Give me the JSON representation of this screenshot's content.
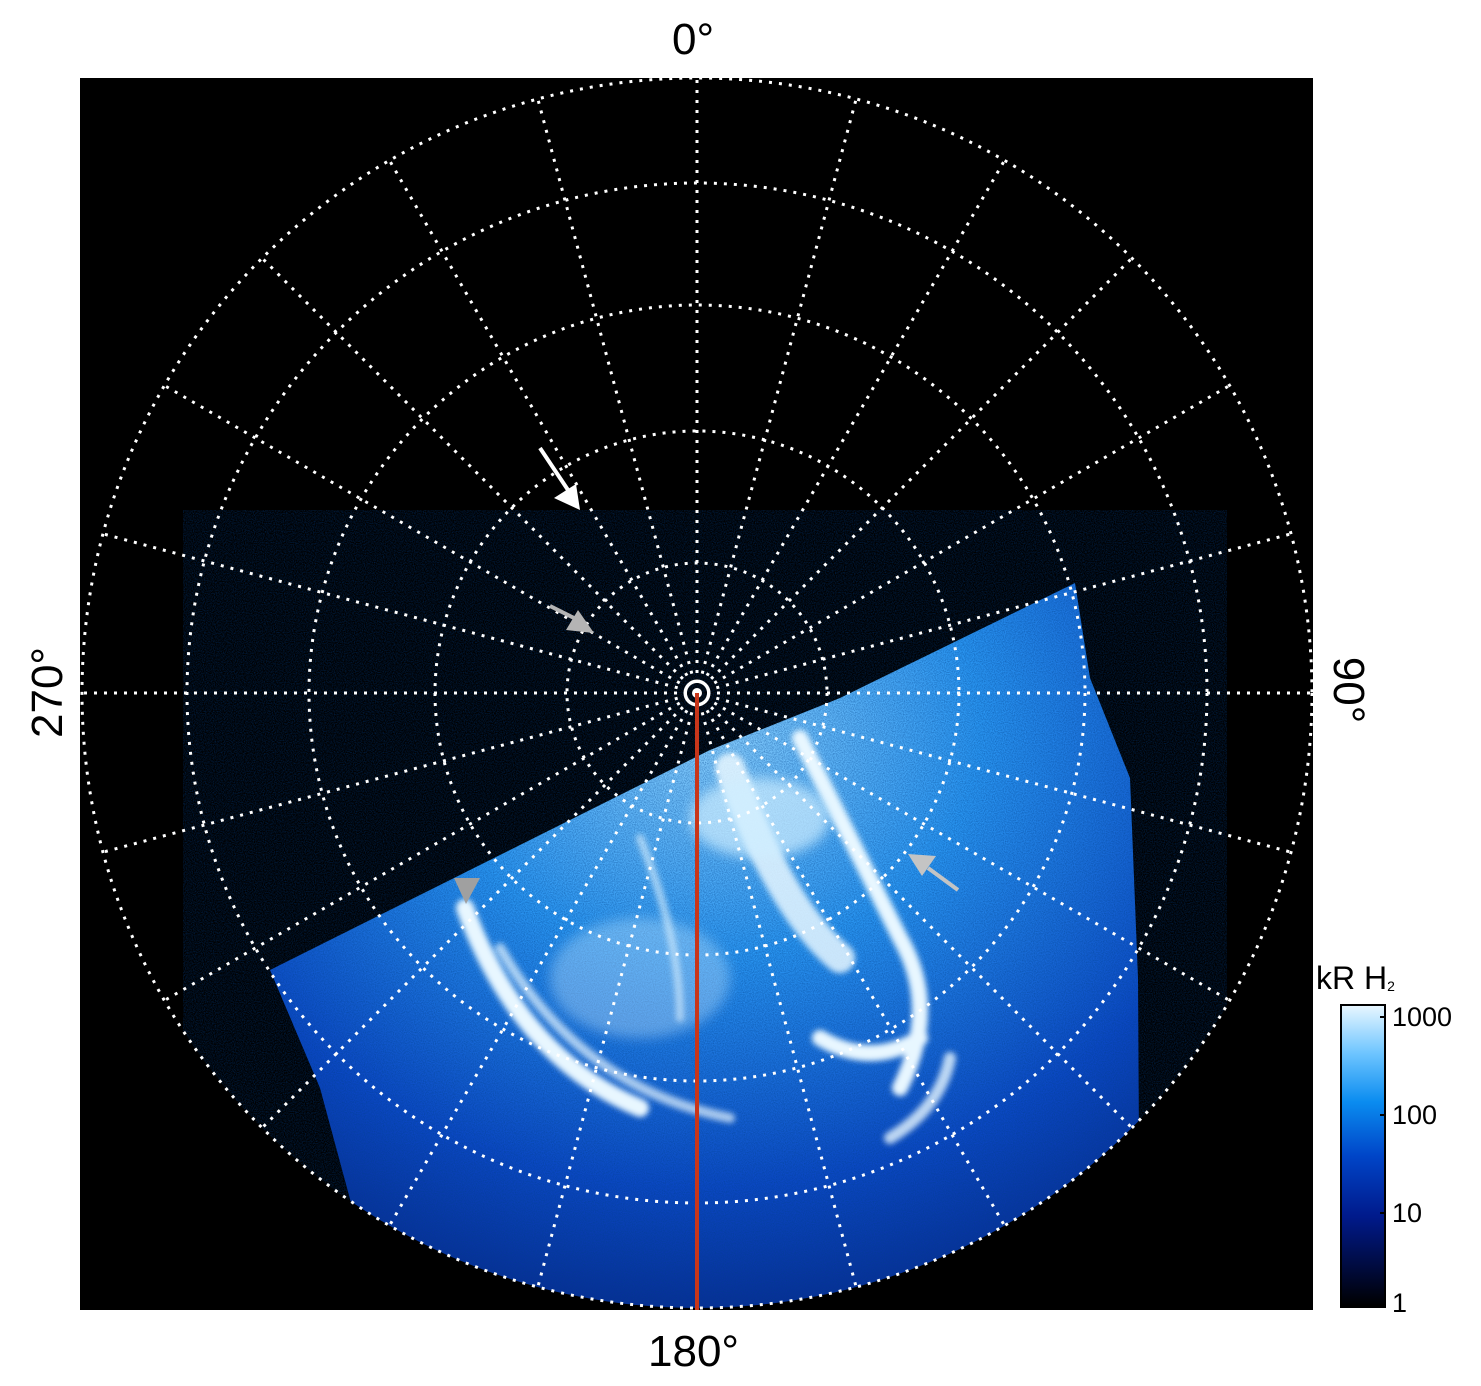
{
  "labels": {
    "top": "0°",
    "bottom": "180°",
    "left": "270°",
    "right": "90°"
  },
  "colorbar": {
    "title_main": "kR H",
    "title_sub": "2",
    "ticks": [
      "1000",
      "100",
      "10",
      "1"
    ]
  },
  "colors": {
    "background": "#000000",
    "grid": "#ffffff",
    "meridian_line": "#c8361a",
    "aurora_bright": "#e8f7ff",
    "aurora_mid": "#1d8ff0",
    "aurora_dim": "#0a2f9a",
    "arrow_white": "#ffffff",
    "arrow_grey": "#b4b4b4"
  }
}
